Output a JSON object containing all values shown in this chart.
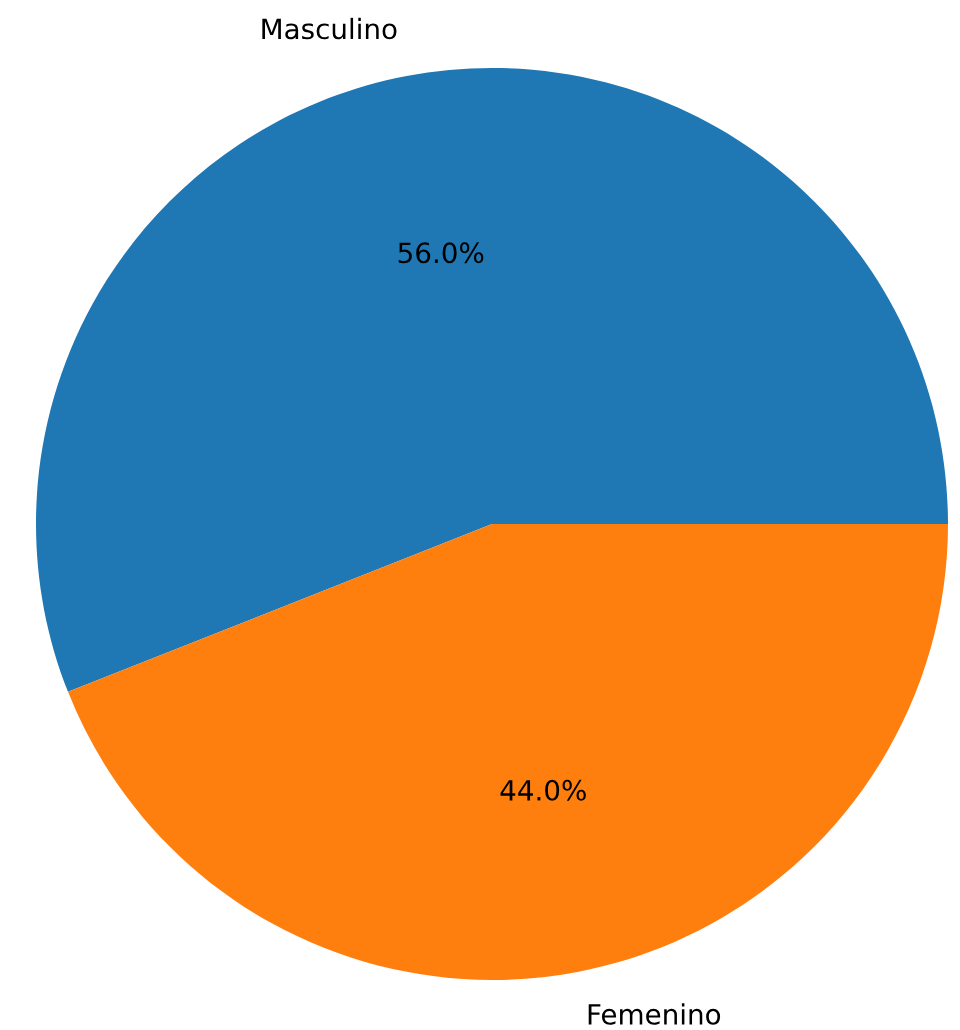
{
  "chart_data": {
    "type": "pie",
    "categories": [
      "Masculino",
      "Femenino"
    ],
    "values": [
      56,
      44
    ],
    "colors": [
      "#1f77b4",
      "#ff7f0e"
    ],
    "value_labels": [
      "56.0%",
      "44.0%"
    ]
  }
}
